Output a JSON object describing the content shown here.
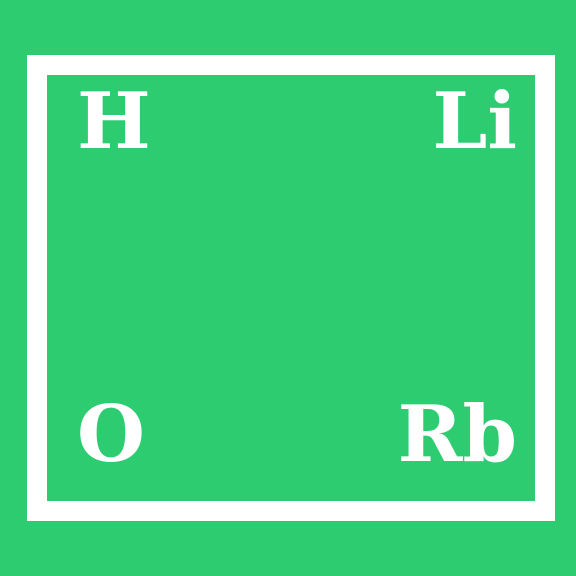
{
  "colors": {
    "background": "#2ecc71",
    "frame": "#ffffff",
    "text": "#ffffff"
  },
  "symbols": {
    "top_left": "H",
    "top_right": "Li",
    "bottom_left": "O",
    "bottom_right": "Rb"
  }
}
